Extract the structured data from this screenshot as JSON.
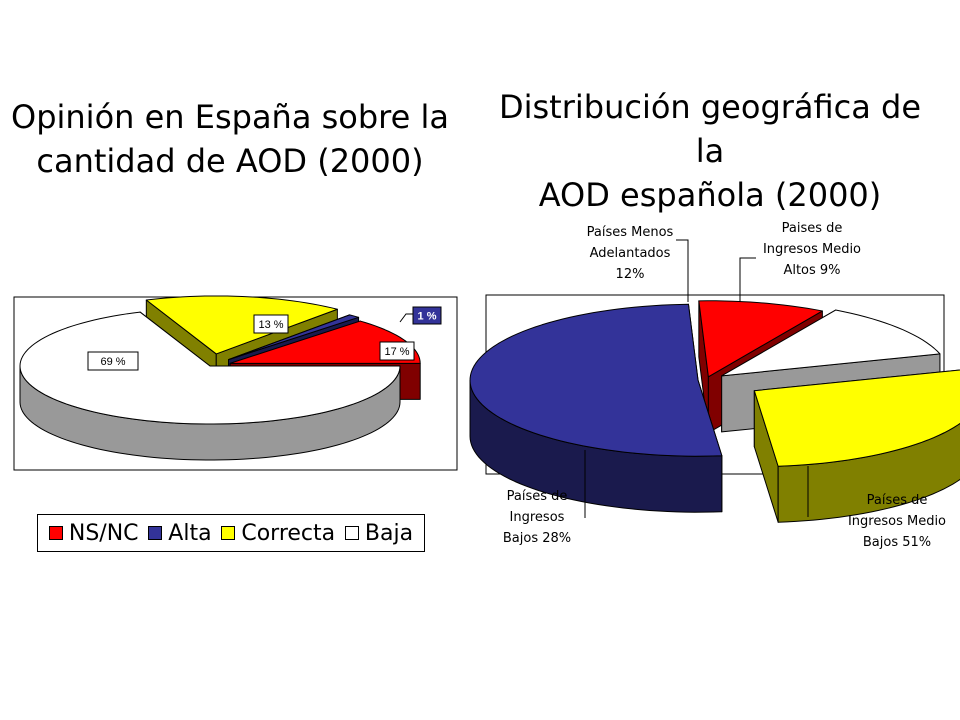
{
  "chart_data": [
    {
      "type": "pie",
      "title": "Opinión en España sobre la\ncantidad de AOD (2000)",
      "categories": [
        "NS/NC",
        "Alta",
        "Correcta",
        "Baja"
      ],
      "values": [
        13,
        1,
        17,
        69
      ],
      "data_labels": [
        "13 %",
        "1 %",
        "17 %",
        "69 %"
      ],
      "colors": [
        "#ff0000",
        "#333399",
        "#ffff00",
        "#ffffff"
      ],
      "legend": {
        "position": "bottom",
        "entries": [
          "NS/NC",
          "Alta",
          "Correcta",
          "Baja"
        ]
      },
      "style": "3d-exploded"
    },
    {
      "type": "pie",
      "title": "Distribución geográfica de la\nAOD española (2000)",
      "categories": [
        "Paises de Ingresos Medio Altos",
        "Países de Ingresos Medio Bajos",
        "Países de Ingresos Bajos",
        "Países Menos Adelantados"
      ],
      "values": [
        9,
        51,
        28,
        12
      ],
      "data_labels": [
        "Paises de\nIngresos Medio\nAltos 9%",
        "Países de\nIngresos Medio\nBajos 51%",
        "Países de\nIngresos\nBajos 28%",
        "Países Menos\nAdelantados\n12%"
      ],
      "colors": [
        "#ff0000",
        "#333399",
        "#ffff00",
        "#ffffff"
      ],
      "legend": {
        "position": "none"
      },
      "style": "3d-exploded"
    }
  ]
}
